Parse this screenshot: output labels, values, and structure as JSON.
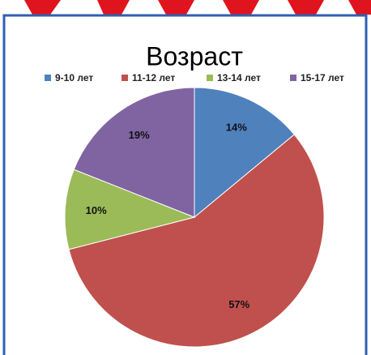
{
  "chart_data": {
    "type": "pie",
    "title": "Возраст",
    "categories": [
      "9-10 лет",
      "11-12 лет",
      "13-14 лет",
      "15-17 лет"
    ],
    "values": [
      14,
      57,
      10,
      19
    ],
    "value_labels": [
      "14%",
      "57%",
      "10%",
      "19%"
    ],
    "colors": [
      "#4f81bd",
      "#c0504d",
      "#9bbb59",
      "#8064a2"
    ],
    "legend": "top"
  }
}
